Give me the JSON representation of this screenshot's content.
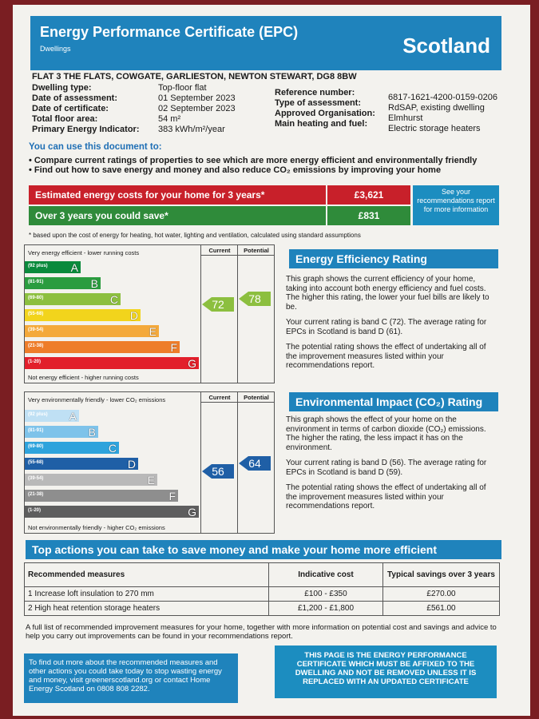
{
  "header": {
    "title": "Energy Performance Certificate (EPC)",
    "subtitle": "Dwellings",
    "country": "Scotland"
  },
  "address": "FLAT 3 THE FLATS, COWGATE, GARLIESTON, NEWTON STEWART, DG8 8BW",
  "details_left": [
    {
      "label": "Dwelling type:",
      "value": "Top-floor flat"
    },
    {
      "label": "Date of assessment:",
      "value": "01 September 2023"
    },
    {
      "label": "Date of certificate:",
      "value": "02 September 2023"
    },
    {
      "label": "Total floor area:",
      "value": "54 m²"
    },
    {
      "label": "Primary Energy Indicator:",
      "value": "383 kWh/m²/year"
    }
  ],
  "details_right": [
    {
      "label": "Reference number:",
      "value": "6817-1621-4200-0159-0206"
    },
    {
      "label": "Type of assessment:",
      "value": "RdSAP, existing dwelling"
    },
    {
      "label": "Approved Organisation:",
      "value": "Elmhurst"
    },
    {
      "label": "Main heating and fuel:",
      "value": "Electric storage heaters"
    }
  ],
  "use_title": "You can use this document to:",
  "bullets": [
    "Compare current ratings of properties to see which are more energy efficient and environmentally friendly",
    "Find out how to save energy and money and also reduce CO₂ emissions by improving your home"
  ],
  "costs": {
    "estimated_label": "Estimated energy costs for your home for 3 years*",
    "estimated_value": "£3,621",
    "save_label": "Over 3 years you could save*",
    "save_value": "£831",
    "see_more": "See your recommendations report for more information",
    "footnote": "* based upon the cost of energy for heating, hot water, lighting and ventilation, calculated using standard assumptions"
  },
  "ee": {
    "top_label": "Very energy efficient - lower running costs",
    "bottom_label": "Not energy efficient - higher running costs",
    "current_header": "Current",
    "potential_header": "Potential",
    "current": "72",
    "potential": "78",
    "bands": [
      {
        "range": "(92 plus)",
        "letter": "A",
        "color": "#0a8a3c"
      },
      {
        "range": "(81-91)",
        "letter": "B",
        "color": "#2a9c3f"
      },
      {
        "range": "(69-80)",
        "letter": "C",
        "color": "#8cbf3f"
      },
      {
        "range": "(55-68)",
        "letter": "D",
        "color": "#f2d41c"
      },
      {
        "range": "(39-54)",
        "letter": "E",
        "color": "#f4a93a"
      },
      {
        "range": "(21-38)",
        "letter": "F",
        "color": "#ee7d2a"
      },
      {
        "range": "(1-20)",
        "letter": "G",
        "color": "#e21f2b"
      }
    ],
    "title": "Energy Efficiency Rating",
    "p1": "This graph shows the current efficiency of your home, taking into account both energy efficiency and fuel costs. The higher this rating, the lower your fuel bills are likely to be.",
    "p2": "Your current rating is band C (72). The average rating for EPCs in Scotland is band D (61).",
    "p3": "The potential rating shows the effect of undertaking all of the improvement measures listed within your recommendations report."
  },
  "ei": {
    "top_label": "Very environmentally friendly - lower CO₂ emissions",
    "bottom_label": "Not environmentally friendly - higher CO₂ emissions",
    "current_header": "Current",
    "potential_header": "Potential",
    "current": "56",
    "potential": "64",
    "bands": [
      {
        "range": "(92 plus)",
        "letter": "A",
        "color": "#bfe0f4"
      },
      {
        "range": "(81-91)",
        "letter": "B",
        "color": "#7ec3ea"
      },
      {
        "range": "(69-80)",
        "letter": "C",
        "color": "#2ea3dc"
      },
      {
        "range": "(55-68)",
        "letter": "D",
        "color": "#1f5fa6"
      },
      {
        "range": "(39-54)",
        "letter": "E",
        "color": "#b9b9b9"
      },
      {
        "range": "(21-38)",
        "letter": "F",
        "color": "#8e8e8e"
      },
      {
        "range": "(1-20)",
        "letter": "G",
        "color": "#5e5e5e"
      }
    ],
    "title": "Environmental Impact (CO₂) Rating",
    "p1": "This graph shows the effect of your home on the environment in terms of carbon dioxide (CO₂) emissions. The higher the rating, the less impact it has on the environment.",
    "p2": "Your current rating is band D (56). The average rating for EPCs in Scotland is band D (59).",
    "p3": "The potential rating shows the effect of undertaking all of the improvement measures listed within your recommendations report."
  },
  "actions": {
    "title": "Top actions you can take to save money and make your home more efficient",
    "headers": [
      "Recommended measures",
      "Indicative cost",
      "Typical savings over 3 years"
    ],
    "rows": [
      {
        "measure": "1 Increase loft insulation to 270 mm",
        "cost": "£100 - £350",
        "saving": "£270.00"
      },
      {
        "measure": "2 High heat retention storage heaters",
        "cost": "£1,200 - £1,800",
        "saving": "£561.00"
      }
    ],
    "note": "A full list of recommended improvement measures for your home, together with more information on potential cost and savings and advice to help you carry out improvements can be found in your recommendations report."
  },
  "footer": {
    "left": "To find out more about the recommended measures and other actions you could take today to stop wasting energy and money, visit greenerscotland.org or contact Home Energy Scotland on 0808 808 2282.",
    "right": "THIS PAGE IS THE ENERGY PERFORMANCE CERTIFICATE WHICH MUST BE AFFIXED TO THE DWELLING AND NOT BE REMOVED UNLESS IT IS REPLACED WITH AN UPDATED CERTIFICATE"
  }
}
